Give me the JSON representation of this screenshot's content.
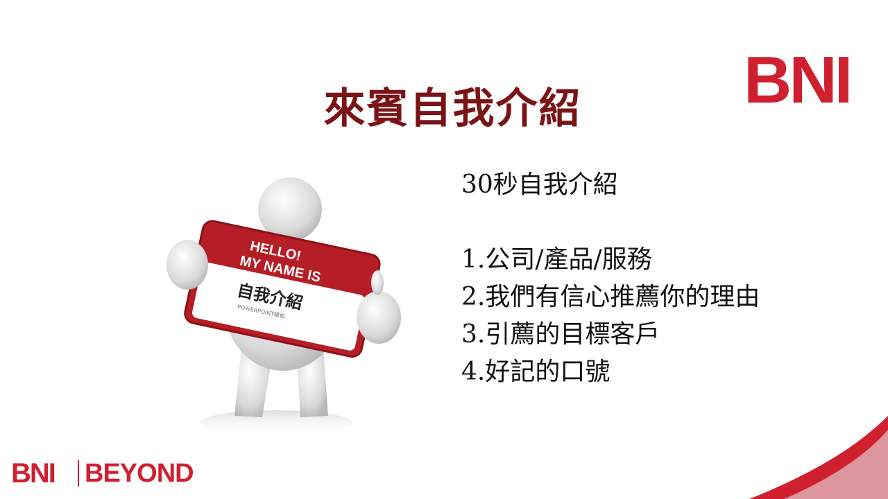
{
  "slide": {
    "title": "來賓自我介紹",
    "subtitle": "30秒自我介紹",
    "items": [
      "1.公司/產品/服務",
      "2.我們有信心推薦你的理由",
      "3.引薦的目標客戶",
      "4.好記的口號"
    ]
  },
  "figure": {
    "sign_line1": "HELLO!",
    "sign_line2": "MY NAME IS",
    "sign_name": "自我介紹",
    "sign_small": "POWERPOINT模板"
  },
  "logos": {
    "top": "BNI",
    "bottom_left": "BNI",
    "bottom_right": "BEYOND"
  },
  "colors": {
    "title": "#7a1416",
    "brand_red": "#cf2030",
    "text": "#111111"
  }
}
